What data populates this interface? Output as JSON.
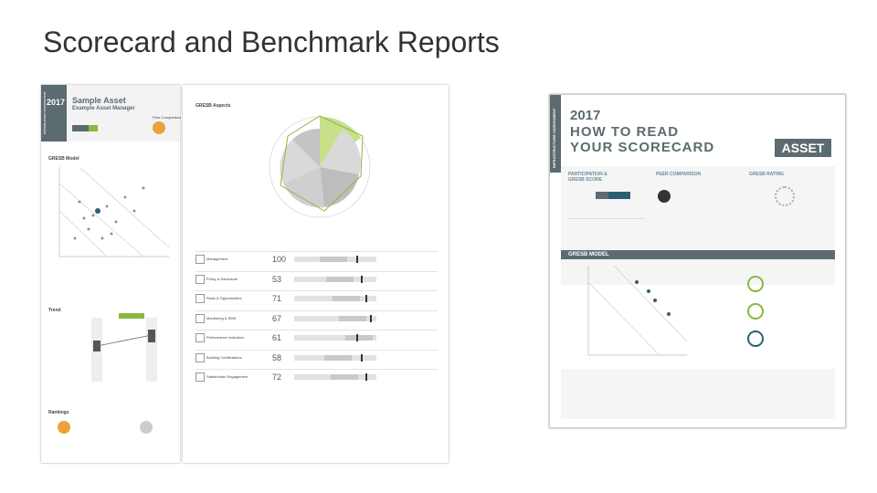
{
  "slide": {
    "title": "Scorecard and Benchmark Reports"
  },
  "report_page_1": {
    "year": "2017",
    "asset": "Sample Asset",
    "manager": "Example Asset Manager",
    "side_label": "Infrastructure Assessment",
    "peer_heading": "Peer Comparison",
    "model_heading": "GRESB Model",
    "trend_heading": "Trend",
    "rankings_heading": "Rankings"
  },
  "report_page_2": {
    "heading": "GRESB Aspects",
    "rows": [
      {
        "label": "Management",
        "score": 100
      },
      {
        "label": "Policy & Disclosure",
        "score": 53
      },
      {
        "label": "Risks & Opportunities",
        "score": 71
      },
      {
        "label": "Monitoring & EMS",
        "score": 67
      },
      {
        "label": "Performance Indicators",
        "score": 61
      },
      {
        "label": "Building Certifications",
        "score": 58
      },
      {
        "label": "Stakeholder Engagement",
        "score": 72
      }
    ]
  },
  "guide": {
    "side_label": "INFRASTRUCTURE ASSESSMENT",
    "year": "2017",
    "title_line_1": "HOW TO READ",
    "title_line_2": "YOUR SCORECARD",
    "badge": "ASSET",
    "sections": [
      "PARTICIPATION & GRESB SCORE",
      "PEER COMPARISON",
      "GRESB RATING"
    ],
    "model_heading": "GRESB MODEL"
  }
}
